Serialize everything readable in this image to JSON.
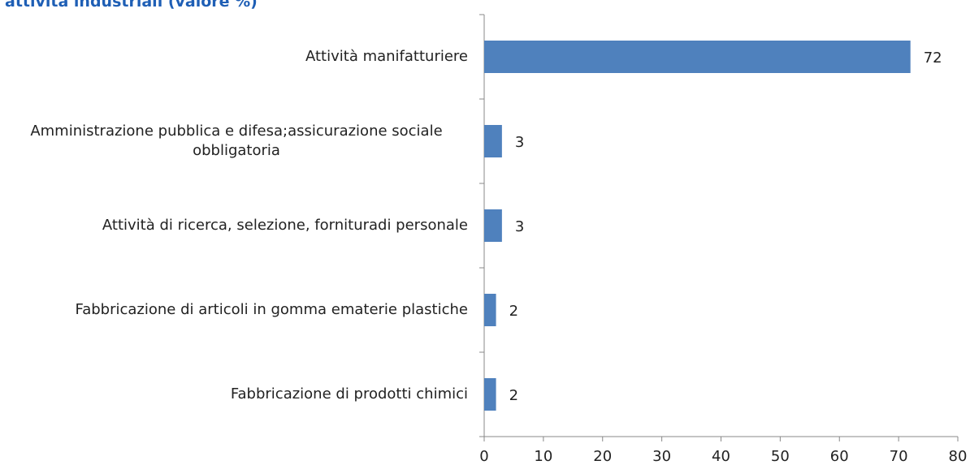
{
  "chart_data": {
    "type": "bar",
    "orientation": "horizontal",
    "title": "attività industriali (valore %)",
    "categories": [
      "Attività manifatturiere",
      "Amministrazione pubblica e difesa;assicurazione sociale obbligatoria",
      "Attività di ricerca, selezione, fornituradi personale",
      "Fabbricazione di articoli in gomma ematerie plastiche",
      "Fabbricazione di prodotti chimici"
    ],
    "values": [
      72,
      3,
      3,
      2,
      2
    ],
    "color": "#4f81bd",
    "xlim": [
      0,
      80
    ],
    "xticks": [
      0,
      10,
      20,
      30,
      40,
      50,
      60,
      70,
      80
    ],
    "grid": false
  }
}
